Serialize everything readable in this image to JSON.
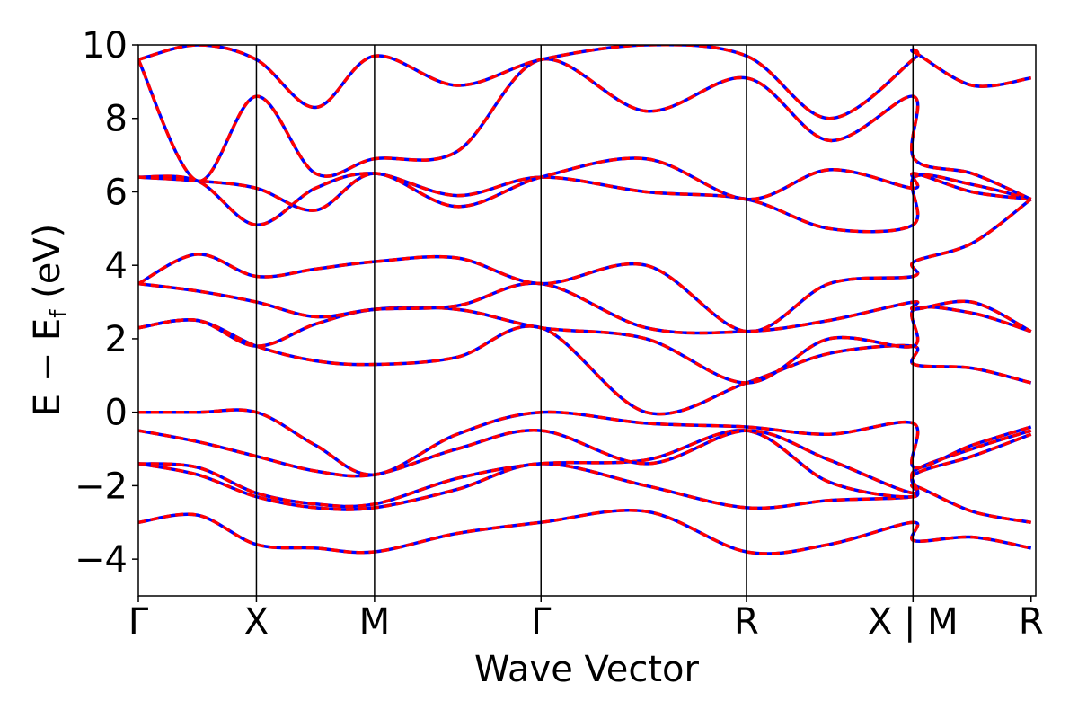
{
  "chart_data": {
    "type": "line",
    "title": "",
    "xlabel": "Wave Vector",
    "ylabel": "E − E_f (eV)",
    "ylabel_main": "E − E",
    "ylabel_sub": "f",
    "ylabel_unit": " (eV)",
    "ylim": [
      -5,
      10
    ],
    "yticks": [
      -4,
      -2,
      0,
      2,
      4,
      6,
      8,
      10
    ],
    "ytick_labels": [
      "−4",
      "−2",
      "0",
      "2",
      "4",
      "6",
      "8",
      "10"
    ],
    "xlim": [
      0,
      7.6
    ],
    "kpoint_labels": [
      "Γ",
      "X",
      "M",
      "Γ",
      "R",
      "X | M",
      "R"
    ],
    "kpoint_x": [
      0,
      1.0,
      2.0,
      3.41,
      5.15,
      6.56,
      7.56
    ],
    "grid": false,
    "legend": "none",
    "series_colors": {
      "solid": "#0000ff",
      "dashed": "#ff0000"
    },
    "x": [
      0,
      0.5,
      1.0,
      1.5,
      2.0,
      2.7,
      3.41,
      4.3,
      5.15,
      5.85,
      6.56,
      6.57,
      7.06,
      7.56
    ],
    "series": [
      {
        "values": [
          -3.0,
          -2.8,
          -3.6,
          -3.7,
          -3.8,
          -3.3,
          -3.0,
          -2.7,
          -3.8,
          -3.6,
          -3.0,
          -3.5,
          -3.4,
          -3.7
        ]
      },
      {
        "values": [
          -1.4,
          -1.7,
          -2.3,
          -2.6,
          -2.6,
          -2.1,
          -1.4,
          -2.0,
          -2.6,
          -2.4,
          -2.3,
          -2.0,
          -2.7,
          -3.0
        ]
      },
      {
        "values": [
          -1.4,
          -1.5,
          -2.2,
          -2.5,
          -2.5,
          -1.8,
          -1.4,
          -1.3,
          -0.5,
          -1.9,
          -2.3,
          -1.7,
          -1.2,
          -0.6
        ]
      },
      {
        "values": [
          -0.5,
          -0.8,
          -1.2,
          -1.6,
          -1.7,
          -1.0,
          -0.5,
          -1.4,
          -0.5,
          -1.3,
          -2.2,
          -1.6,
          -1.0,
          -0.5
        ]
      },
      {
        "values": [
          0.0,
          0.0,
          0.0,
          -0.9,
          -1.7,
          -0.6,
          0.0,
          -0.3,
          -0.4,
          -0.6,
          -0.3,
          -1.5,
          -0.9,
          -0.4
        ]
      },
      {
        "values": [
          2.3,
          2.5,
          1.8,
          1.4,
          1.3,
          1.5,
          2.3,
          0.0,
          0.8,
          1.6,
          1.8,
          1.3,
          1.2,
          0.8
        ]
      },
      {
        "values": [
          2.3,
          2.5,
          1.8,
          2.4,
          2.8,
          2.8,
          2.3,
          2.0,
          0.8,
          2.0,
          1.8,
          2.8,
          2.7,
          2.2
        ]
      },
      {
        "values": [
          3.5,
          3.3,
          3.0,
          2.6,
          2.8,
          2.9,
          3.5,
          2.3,
          2.2,
          2.5,
          3.0,
          2.8,
          3.0,
          2.2
        ]
      },
      {
        "values": [
          3.5,
          4.3,
          3.7,
          3.9,
          4.1,
          4.2,
          3.5,
          4.0,
          2.2,
          3.5,
          3.7,
          4.1,
          4.6,
          5.8
        ]
      },
      {
        "values": [
          6.4,
          6.3,
          5.1,
          6.1,
          6.5,
          5.9,
          6.4,
          6.0,
          5.8,
          5.0,
          5.1,
          6.4,
          6.2,
          5.8
        ]
      },
      {
        "values": [
          6.4,
          6.3,
          6.1,
          5.5,
          6.5,
          5.6,
          6.4,
          6.9,
          5.8,
          6.6,
          6.1,
          6.5,
          6.0,
          5.8
        ]
      },
      {
        "values": [
          9.6,
          6.3,
          8.6,
          6.5,
          6.9,
          7.1,
          9.6,
          8.2,
          9.1,
          7.4,
          8.6,
          6.9,
          6.5,
          5.8
        ]
      },
      {
        "values": [
          9.6,
          10.0,
          9.6,
          8.3,
          9.7,
          8.9,
          9.6,
          10.0,
          9.7,
          8.0,
          9.6,
          9.8,
          8.9,
          9.1
        ]
      }
    ]
  }
}
